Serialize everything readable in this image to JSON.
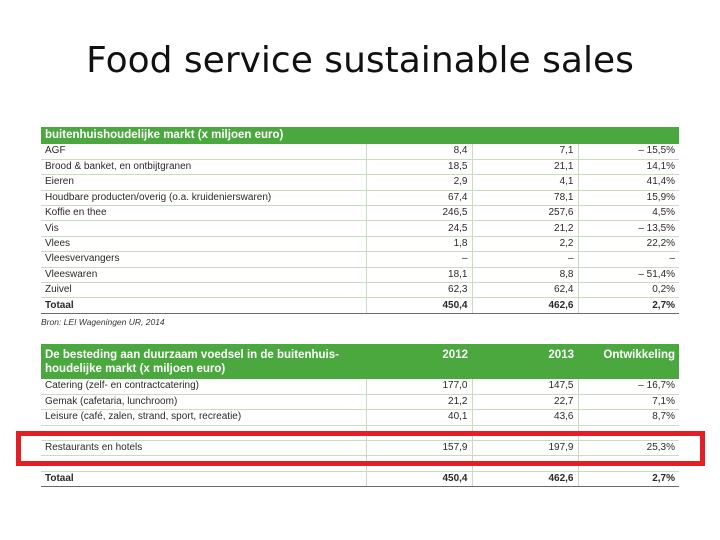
{
  "title": "Food service sustainable sales",
  "table1": {
    "header": "buitenhuishoudelijke markt (x miljoen euro)",
    "rows": [
      {
        "label": "AGF",
        "v2012": "8,4",
        "v2013": "7,1",
        "change": "– 15,5%"
      },
      {
        "label": "Brood & banket, en ontbijtgranen",
        "v2012": "18,5",
        "v2013": "21,1",
        "change": "14,1%"
      },
      {
        "label": "Eieren",
        "v2012": "2,9",
        "v2013": "4,1",
        "change": "41,4%"
      },
      {
        "label": "Houdbare producten/overig (o.a. kruidenierswaren)",
        "v2012": "67,4",
        "v2013": "78,1",
        "change": "15,9%"
      },
      {
        "label": "Koffie en thee",
        "v2012": "246,5",
        "v2013": "257,6",
        "change": "4,5%"
      },
      {
        "label": "Vis",
        "v2012": "24,5",
        "v2013": "21,2",
        "change": "– 13,5%"
      },
      {
        "label": "Vlees",
        "v2012": "1,8",
        "v2013": "2,2",
        "change": "22,2%"
      },
      {
        "label": "Vleesvervangers",
        "v2012": "–",
        "v2013": "–",
        "change": "–"
      },
      {
        "label": "Vleeswaren",
        "v2012": "18,1",
        "v2013": "8,8",
        "change": "– 51,4%"
      },
      {
        "label": "Zuivel",
        "v2012": "62,3",
        "v2013": "62,4",
        "change": "0,2%"
      }
    ],
    "total": {
      "label": "Totaal",
      "v2012": "450,4",
      "v2013": "462,6",
      "change": "2,7%"
    }
  },
  "source": "Bron: LEI Wageningen UR, 2014",
  "table2": {
    "header_line1": "De besteding aan duurzaam voedsel in de buitenhuis-",
    "header_line2": "houdelijke markt (x miljoen euro)",
    "col_2012": "2012",
    "col_2013": "2013",
    "col_change": "Ontwikkeling",
    "rows": [
      {
        "label": "Catering (zelf- en contractcatering)",
        "v2012": "177,0",
        "v2013": "147,5",
        "change": "– 16,7%"
      },
      {
        "label": "Gemak (cafetaria, lunchroom)",
        "v2012": "21,2",
        "v2013": "22,7",
        "change": "7,1%"
      },
      {
        "label": "Leisure (café, zalen, strand, sport, recreatie)",
        "v2012": "40,1",
        "v2013": "43,6",
        "change": "8,7%"
      },
      {
        "label": "",
        "v2012": "",
        "v2013": "",
        "change": ""
      },
      {
        "label": "Restaurants en hotels",
        "v2012": "157,9",
        "v2013": "197,9",
        "change": "25,3%"
      },
      {
        "label": "",
        "v2012": "",
        "v2013": "",
        "change": ""
      }
    ],
    "total": {
      "label": "Totaal",
      "v2012": "450,4",
      "v2013": "462,6",
      "change": "2,7%"
    }
  },
  "highlight_color": "#e31e24",
  "header_color": "#4aa83e"
}
